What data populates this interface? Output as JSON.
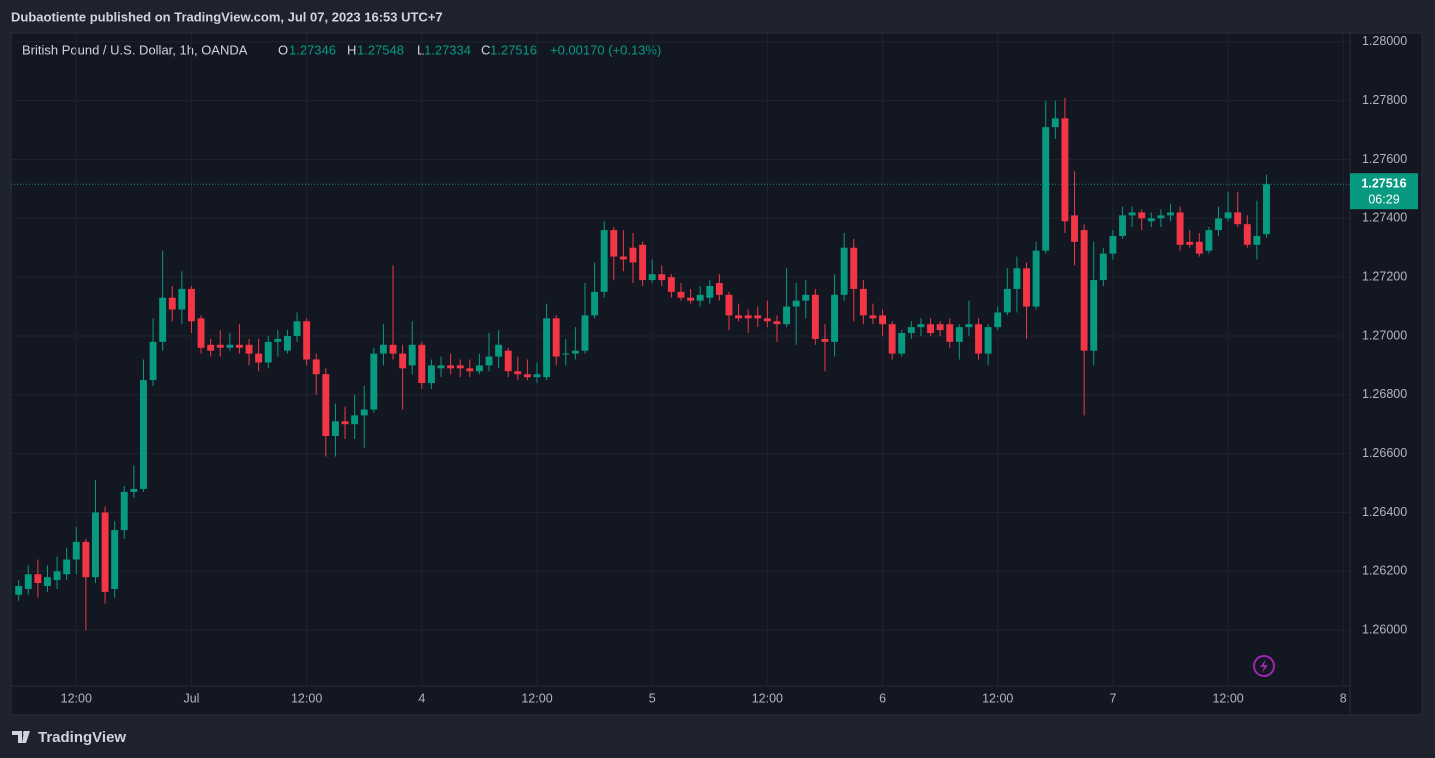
{
  "chart_data": {
    "type": "candlestick",
    "publisher": "Dubaotiente published on TradingView.com, Jul 07, 2023 16:53 UTC+7",
    "title": "British Pound / U.S. Dollar, 1h, OANDA",
    "legend": {
      "o_label": "O",
      "o": 1.27346,
      "h_label": "H",
      "h": 1.27548,
      "l_label": "L",
      "l": 1.27334,
      "c_label": "C",
      "c": 1.27516,
      "change": "+0.00170 (+0.13%)"
    },
    "last_price": 1.27516,
    "countdown": "06:29",
    "brand": "TradingView",
    "up_color": "#089981",
    "down_color": "#f23645",
    "grid": true,
    "xlim": [
      -0.8,
      138.7
    ],
    "ylim": [
      1.2581,
      1.2803
    ],
    "xticks": [
      {
        "value": 6,
        "label": "12:00"
      },
      {
        "value": 18,
        "label": "Jul"
      },
      {
        "value": 30,
        "label": "12:00"
      },
      {
        "value": 42,
        "label": "4"
      },
      {
        "value": 54,
        "label": "12:00"
      },
      {
        "value": 66,
        "label": "5"
      },
      {
        "value": 78,
        "label": "12:00"
      },
      {
        "value": 90,
        "label": "6"
      },
      {
        "value": 102,
        "label": "12:00"
      },
      {
        "value": 114,
        "label": "7"
      },
      {
        "value": 126,
        "label": "12:00"
      },
      {
        "value": 138,
        "label": "8"
      }
    ],
    "yticks": [
      {
        "value": 1.26,
        "label": "1.26000"
      },
      {
        "value": 1.262,
        "label": "1.26200"
      },
      {
        "value": 1.264,
        "label": "1.26400"
      },
      {
        "value": 1.266,
        "label": "1.26600"
      },
      {
        "value": 1.268,
        "label": "1.26800"
      },
      {
        "value": 1.27,
        "label": "1.27000"
      },
      {
        "value": 1.272,
        "label": "1.27200"
      },
      {
        "value": 1.274,
        "label": "1.27400"
      },
      {
        "value": 1.276,
        "label": "1.27600"
      },
      {
        "value": 1.278,
        "label": "1.27800"
      },
      {
        "value": 1.28,
        "label": "1.28000"
      }
    ],
    "open": [
      1.2612,
      1.2614,
      1.2619,
      1.2615,
      1.2617,
      1.2619,
      1.2624,
      1.263,
      1.2618,
      1.264,
      1.2614,
      1.2634,
      1.2647,
      1.2648,
      1.2685,
      1.2698,
      1.2713,
      1.2709,
      1.2716,
      1.2706,
      1.2697,
      1.2697,
      1.2696,
      1.2697,
      1.2697,
      1.2694,
      1.2691,
      1.2698,
      1.2695,
      1.27,
      1.2705,
      1.2692,
      1.2687,
      1.2666,
      1.2671,
      1.267,
      1.2673,
      1.2675,
      1.2694,
      1.2697,
      1.2694,
      1.269,
      1.2697,
      1.2684,
      1.2689,
      1.269,
      1.269,
      1.2689,
      1.2688,
      1.269,
      1.2693,
      1.2695,
      1.2688,
      1.2687,
      1.2686,
      1.2686,
      1.2706,
      1.2694,
      1.2694,
      1.2695,
      1.2707,
      1.2715,
      1.2736,
      1.2727,
      1.273,
      1.2731,
      1.2719,
      1.2721,
      1.272,
      1.2715,
      1.2713,
      1.2712,
      1.2713,
      1.2718,
      1.2714,
      1.2707,
      1.2707,
      1.2707,
      1.2706,
      1.2705,
      1.2704,
      1.271,
      1.2712,
      1.2714,
      1.2699,
      1.2698,
      1.2714,
      1.273,
      1.2716,
      1.2707,
      1.2707,
      1.2704,
      1.2694,
      1.2701,
      1.2703,
      1.2704,
      1.2704,
      1.2704,
      1.2698,
      1.2703,
      1.2704,
      1.2694,
      1.2703,
      1.2708,
      1.2716,
      1.2723,
      1.271,
      1.2729,
      1.2771,
      1.2774,
      1.2741,
      1.2736,
      1.2695,
      1.2719,
      1.2728,
      1.2734,
      1.2741,
      1.2742,
      1.2739,
      1.274,
      1.2741,
      1.2742,
      1.2732,
      1.2732,
      1.2729,
      1.2736,
      1.274,
      1.2742,
      1.2738,
      1.2731,
      1.27346
    ],
    "high": [
      1.2617,
      1.2622,
      1.2624,
      1.2622,
      1.2625,
      1.2628,
      1.2635,
      1.2631,
      1.2651,
      1.2642,
      1.2637,
      1.2649,
      1.2656,
      1.2692,
      1.2706,
      1.2729,
      1.2717,
      1.2722,
      1.2717,
      1.2707,
      1.2699,
      1.2702,
      1.2701,
      1.2704,
      1.2699,
      1.2699,
      1.27,
      1.2702,
      1.2702,
      1.2708,
      1.2706,
      1.2694,
      1.2689,
      1.2677,
      1.2676,
      1.268,
      1.2683,
      1.2696,
      1.2704,
      1.2724,
      1.2697,
      1.2705,
      1.2698,
      1.2692,
      1.2693,
      1.2694,
      1.2692,
      1.2692,
      1.2694,
      1.2701,
      1.2702,
      1.2696,
      1.2693,
      1.2692,
      1.2691,
      1.2711,
      1.2707,
      1.2699,
      1.2703,
      1.2718,
      1.2725,
      1.2739,
      1.2737,
      1.2736,
      1.2735,
      1.2732,
      1.2726,
      1.2724,
      1.2721,
      1.2718,
      1.2716,
      1.2717,
      1.2719,
      1.2721,
      1.2715,
      1.2711,
      1.2709,
      1.271,
      1.2712,
      1.2707,
      1.2723,
      1.2718,
      1.2719,
      1.2716,
      1.2704,
      1.2721,
      1.2735,
      1.2733,
      1.2719,
      1.2711,
      1.2709,
      1.2705,
      1.2702,
      1.2705,
      1.2706,
      1.2706,
      1.2705,
      1.2706,
      1.2704,
      1.2712,
      1.2706,
      1.2704,
      1.271,
      1.2723,
      1.2727,
      1.2725,
      1.2732,
      1.278,
      1.278,
      1.2781,
      1.2756,
      1.2738,
      1.2732,
      1.273,
      1.2736,
      1.2744,
      1.2744,
      1.2743,
      1.2742,
      1.2743,
      1.2745,
      1.2744,
      1.2736,
      1.2735,
      1.2737,
      1.2744,
      1.2749,
      1.2749,
      1.2741,
      1.2746,
      1.27548
    ],
    "low": [
      1.261,
      1.2612,
      1.2611,
      1.2613,
      1.2614,
      1.2617,
      1.2619,
      1.26,
      1.2616,
      1.2609,
      1.2611,
      1.2631,
      1.2645,
      1.2647,
      1.2683,
      1.2695,
      1.2705,
      1.2704,
      1.2701,
      1.2694,
      1.2693,
      1.2693,
      1.2695,
      1.2694,
      1.269,
      1.2688,
      1.2689,
      1.2693,
      1.2694,
      1.2698,
      1.269,
      1.268,
      1.2659,
      1.2659,
      1.2665,
      1.2665,
      1.2662,
      1.2674,
      1.269,
      1.2692,
      1.2675,
      1.2687,
      1.2682,
      1.2682,
      1.2686,
      1.2687,
      1.2686,
      1.2686,
      1.2687,
      1.2688,
      1.2689,
      1.2686,
      1.2685,
      1.2685,
      1.2684,
      1.2685,
      1.269,
      1.269,
      1.2692,
      1.2694,
      1.2706,
      1.2713,
      1.2719,
      1.2722,
      1.2718,
      1.2717,
      1.2718,
      1.2717,
      1.2713,
      1.2712,
      1.2711,
      1.271,
      1.2711,
      1.2712,
      1.2702,
      1.2705,
      1.2701,
      1.2703,
      1.2703,
      1.2698,
      1.2703,
      1.2697,
      1.2706,
      1.2697,
      1.2688,
      1.2693,
      1.2712,
      1.2705,
      1.2704,
      1.2704,
      1.27,
      1.2692,
      1.2693,
      1.2699,
      1.27,
      1.27,
      1.27,
      1.2696,
      1.2692,
      1.27,
      1.2692,
      1.269,
      1.2702,
      1.2707,
      1.2708,
      1.2699,
      1.2709,
      1.2728,
      1.2767,
      1.2735,
      1.2724,
      1.2673,
      1.269,
      1.2717,
      1.2726,
      1.2733,
      1.2737,
      1.2736,
      1.2737,
      1.2737,
      1.2739,
      1.2729,
      1.273,
      1.2727,
      1.2728,
      1.2734,
      1.2739,
      1.2737,
      1.273,
      1.2726,
      1.27334
    ],
    "close": [
      1.2615,
      1.2619,
      1.2616,
      1.2618,
      1.262,
      1.2624,
      1.263,
      1.2618,
      1.264,
      1.2613,
      1.2634,
      1.2647,
      1.2648,
      1.2685,
      1.2698,
      1.2713,
      1.2709,
      1.2716,
      1.2705,
      1.2696,
      1.2695,
      1.2696,
      1.2697,
      1.2696,
      1.2694,
      1.2691,
      1.2698,
      1.2699,
      1.27,
      1.2705,
      1.2692,
      1.2687,
      1.2666,
      1.2671,
      1.267,
      1.2673,
      1.2675,
      1.2694,
      1.2697,
      1.2694,
      1.2689,
      1.2697,
      1.2684,
      1.269,
      1.269,
      1.2689,
      1.2689,
      1.2688,
      1.269,
      1.2693,
      1.2697,
      1.2688,
      1.2687,
      1.2686,
      1.2687,
      1.2706,
      1.2693,
      1.2694,
      1.2695,
      1.2707,
      1.2715,
      1.2736,
      1.2727,
      1.2726,
      1.2725,
      1.2719,
      1.2721,
      1.2719,
      1.2715,
      1.2713,
      1.2712,
      1.2714,
      1.2717,
      1.2714,
      1.2707,
      1.2706,
      1.2706,
      1.2706,
      1.2705,
      1.2704,
      1.271,
      1.2712,
      1.2714,
      1.2699,
      1.2698,
      1.2714,
      1.273,
      1.2716,
      1.2707,
      1.2706,
      1.2704,
      1.2694,
      1.2701,
      1.2703,
      1.2704,
      1.2701,
      1.2702,
      1.2698,
      1.2703,
      1.2704,
      1.2694,
      1.2703,
      1.2708,
      1.2716,
      1.2723,
      1.271,
      1.2729,
      1.2771,
      1.2774,
      1.2739,
      1.2732,
      1.2695,
      1.2719,
      1.2728,
      1.2734,
      1.2741,
      1.2742,
      1.274,
      1.274,
      1.2741,
      1.2742,
      1.2731,
      1.2731,
      1.2728,
      1.2736,
      1.274,
      1.2742,
      1.2738,
      1.2731,
      1.2734,
      1.27516
    ]
  }
}
